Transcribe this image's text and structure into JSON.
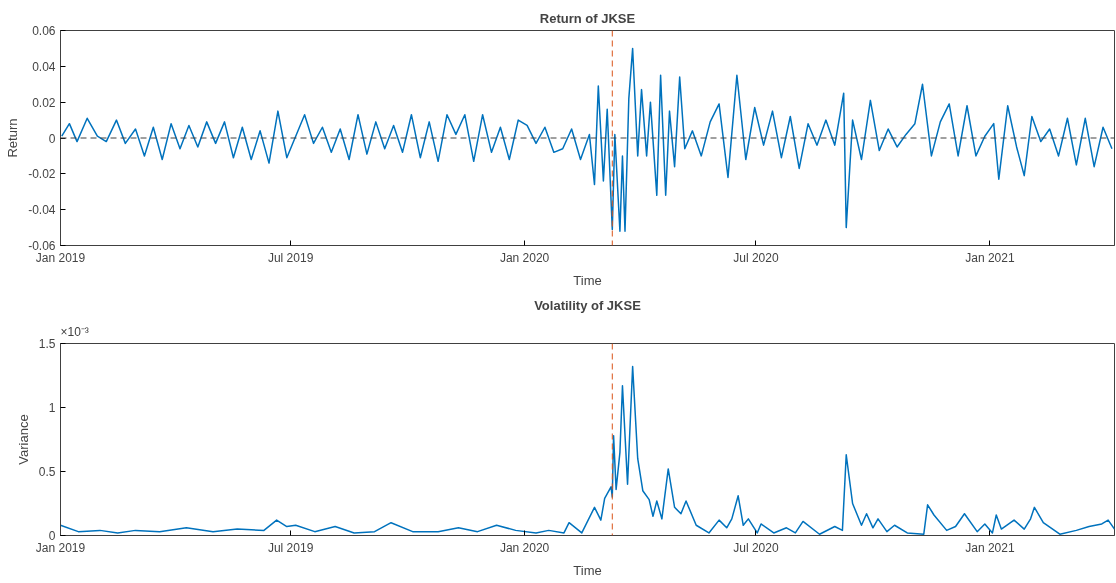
{
  "chart_data": [
    {
      "type": "line",
      "title": "Return of JKSE",
      "xlabel": "Time",
      "ylabel": "Return",
      "x": [
        "2019-01-02",
        "2019-01-08",
        "2019-01-14",
        "2019-01-22",
        "2019-01-30",
        "2019-02-06",
        "2019-02-14",
        "2019-02-21",
        "2019-03-01",
        "2019-03-08",
        "2019-03-15",
        "2019-03-22",
        "2019-03-29",
        "2019-04-05",
        "2019-04-12",
        "2019-04-19",
        "2019-04-26",
        "2019-05-03",
        "2019-05-10",
        "2019-05-17",
        "2019-05-24",
        "2019-05-31",
        "2019-06-07",
        "2019-06-14",
        "2019-06-21",
        "2019-06-28",
        "2019-07-05",
        "2019-07-12",
        "2019-07-19",
        "2019-07-26",
        "2019-08-02",
        "2019-08-09",
        "2019-08-16",
        "2019-08-23",
        "2019-08-30",
        "2019-09-06",
        "2019-09-13",
        "2019-09-20",
        "2019-09-27",
        "2019-10-04",
        "2019-10-11",
        "2019-10-18",
        "2019-10-25",
        "2019-11-01",
        "2019-11-08",
        "2019-11-15",
        "2019-11-22",
        "2019-11-29",
        "2019-12-06",
        "2019-12-13",
        "2019-12-20",
        "2019-12-27",
        "2020-01-03",
        "2020-01-10",
        "2020-01-17",
        "2020-01-24",
        "2020-01-31",
        "2020-02-07",
        "2020-02-14",
        "2020-02-21",
        "2020-02-25",
        "2020-02-28",
        "2020-03-03",
        "2020-03-06",
        "2020-03-10",
        "2020-03-12",
        "2020-03-16",
        "2020-03-18",
        "2020-03-20",
        "2020-03-23",
        "2020-03-26",
        "2020-03-30",
        "2020-04-02",
        "2020-04-06",
        "2020-04-09",
        "2020-04-14",
        "2020-04-17",
        "2020-04-21",
        "2020-04-24",
        "2020-04-28",
        "2020-05-02",
        "2020-05-06",
        "2020-05-12",
        "2020-05-19",
        "2020-05-26",
        "2020-06-02",
        "2020-06-09",
        "2020-06-16",
        "2020-06-23",
        "2020-06-30",
        "2020-07-07",
        "2020-07-14",
        "2020-07-21",
        "2020-07-28",
        "2020-08-04",
        "2020-08-11",
        "2020-08-18",
        "2020-08-25",
        "2020-09-01",
        "2020-09-08",
        "2020-09-10",
        "2020-09-15",
        "2020-09-22",
        "2020-09-29",
        "2020-10-06",
        "2020-10-13",
        "2020-10-20",
        "2020-10-27",
        "2020-11-03",
        "2020-11-09",
        "2020-11-16",
        "2020-11-23",
        "2020-11-30",
        "2020-12-07",
        "2020-12-14",
        "2020-12-21",
        "2020-12-28",
        "2021-01-04",
        "2021-01-08",
        "2021-01-15",
        "2021-01-22",
        "2021-01-28",
        "2021-02-03",
        "2021-02-10",
        "2021-02-17",
        "2021-02-24",
        "2021-03-03",
        "2021-03-10",
        "2021-03-17",
        "2021-03-24",
        "2021-03-31",
        "2021-04-07"
      ],
      "series": [
        {
          "color": "#0072bd",
          "values": [
            0.001,
            0.008,
            -0.002,
            0.011,
            0.001,
            -0.002,
            0.01,
            -0.003,
            0.005,
            -0.01,
            0.006,
            -0.012,
            0.008,
            -0.006,
            0.007,
            -0.005,
            0.009,
            -0.003,
            0.009,
            -0.011,
            0.006,
            -0.012,
            0.004,
            -0.014,
            0.015,
            -0.011,
            0.001,
            0.013,
            -0.003,
            0.006,
            -0.008,
            0.005,
            -0.012,
            0.013,
            -0.009,
            0.009,
            -0.006,
            0.007,
            -0.008,
            0.013,
            -0.011,
            0.009,
            -0.013,
            0.013,
            0.002,
            0.013,
            -0.013,
            0.013,
            -0.008,
            0.006,
            -0.012,
            0.01,
            0.007,
            -0.003,
            0.006,
            -0.008,
            -0.006,
            0.005,
            -0.012,
            0.002,
            -0.026,
            0.029,
            -0.024,
            0.016,
            -0.051,
            0.002,
            -0.052,
            -0.01,
            -0.052,
            0.022,
            0.05,
            -0.01,
            0.027,
            -0.01,
            0.02,
            -0.032,
            0.035,
            -0.032,
            0.015,
            -0.016,
            0.034,
            -0.006,
            0.004,
            -0.01,
            0.009,
            0.019,
            -0.022,
            0.035,
            -0.012,
            0.017,
            -0.004,
            0.015,
            -0.011,
            0.012,
            -0.017,
            0.008,
            -0.004,
            0.01,
            -0.004,
            0.025,
            -0.05,
            0.01,
            -0.012,
            0.021,
            -0.007,
            0.005,
            -0.005,
            0.002,
            0.008,
            0.03,
            -0.01,
            0.009,
            0.019,
            -0.01,
            0.018,
            -0.01,
            0.001,
            0.008,
            -0.023,
            0.018,
            -0.005,
            -0.021,
            0.012,
            -0.002,
            0.005,
            -0.01,
            0.011,
            -0.015,
            0.011,
            -0.016,
            0.006,
            -0.006
          ]
        }
      ],
      "xlim": [
        "2019-01-01",
        "2021-04-09"
      ],
      "xticks": [
        {
          "value": "2019-01-01",
          "label": "Jan 2019"
        },
        {
          "value": "2019-07-01",
          "label": "Jul 2019"
        },
        {
          "value": "2020-01-01",
          "label": "Jan 2020"
        },
        {
          "value": "2020-07-01",
          "label": "Jul 2020"
        },
        {
          "value": "2021-01-01",
          "label": "Jan 2021"
        }
      ],
      "ylim": [
        -0.06,
        0.06
      ],
      "yticks": [
        -0.06,
        -0.04,
        -0.02,
        {
          "value": 0,
          "label": "0"
        },
        0.02,
        0.04,
        0.06
      ],
      "ref_lines": [
        {
          "axis": "x",
          "value": "2020-03-10",
          "color": "#d95319",
          "line_style": "dashed"
        },
        {
          "axis": "y",
          "value": 0,
          "color": "#404040",
          "line_style": "dashed"
        }
      ],
      "line_style": "solid",
      "marker": "none",
      "grid": false
    },
    {
      "type": "line",
      "title": "Volatility of JKSE",
      "xlabel": "Time",
      "ylabel": "Variance",
      "x": [
        "2019-01-01",
        "2019-01-15",
        "2019-02-01",
        "2019-02-15",
        "2019-03-01",
        "2019-03-20",
        "2019-04-10",
        "2019-05-01",
        "2019-05-20",
        "2019-06-10",
        "2019-06-20",
        "2019-06-28",
        "2019-07-05",
        "2019-07-20",
        "2019-08-05",
        "2019-08-20",
        "2019-09-05",
        "2019-09-18",
        "2019-10-05",
        "2019-10-25",
        "2019-11-10",
        "2019-11-25",
        "2019-12-10",
        "2019-12-25",
        "2020-01-10",
        "2020-01-20",
        "2020-02-01",
        "2020-02-05",
        "2020-02-15",
        "2020-02-25",
        "2020-03-01",
        "2020-03-04",
        "2020-03-09",
        "2020-03-10",
        "2020-03-11",
        "2020-03-13",
        "2020-03-16",
        "2020-03-18",
        "2020-03-22",
        "2020-03-26",
        "2020-03-30",
        "2020-04-03",
        "2020-04-08",
        "2020-04-11",
        "2020-04-14",
        "2020-04-18",
        "2020-04-23",
        "2020-04-28",
        "2020-05-03",
        "2020-05-07",
        "2020-05-15",
        "2020-05-25",
        "2020-06-02",
        "2020-06-08",
        "2020-06-12",
        "2020-06-17",
        "2020-06-21",
        "2020-06-25",
        "2020-07-02",
        "2020-07-05",
        "2020-07-15",
        "2020-07-25",
        "2020-08-01",
        "2020-08-07",
        "2020-08-20",
        "2020-09-01",
        "2020-09-07",
        "2020-09-10",
        "2020-09-15",
        "2020-09-22",
        "2020-09-26",
        "2020-10-01",
        "2020-10-05",
        "2020-10-12",
        "2020-10-18",
        "2020-10-28",
        "2020-11-10",
        "2020-11-13",
        "2020-11-18",
        "2020-11-28",
        "2020-12-05",
        "2020-12-12",
        "2020-12-22",
        "2020-12-28",
        "2021-01-03",
        "2021-01-06",
        "2021-01-10",
        "2021-01-20",
        "2021-01-28",
        "2021-02-02",
        "2021-02-05",
        "2021-02-12",
        "2021-02-25",
        "2021-03-10",
        "2021-03-20",
        "2021-03-30",
        "2021-04-04",
        "2021-04-09"
      ],
      "series": [
        {
          "color": "#0072bd",
          "values": [
            0.08,
            0.03,
            0.04,
            0.02,
            0.04,
            0.03,
            0.06,
            0.03,
            0.05,
            0.04,
            0.12,
            0.07,
            0.08,
            0.03,
            0.07,
            0.02,
            0.03,
            0.1,
            0.03,
            0.03,
            0.06,
            0.03,
            0.08,
            0.04,
            0.02,
            0.04,
            0.02,
            0.1,
            0.02,
            0.22,
            0.12,
            0.29,
            0.38,
            0.3,
            0.78,
            0.36,
            0.65,
            1.17,
            0.4,
            1.32,
            0.6,
            0.35,
            0.28,
            0.15,
            0.27,
            0.13,
            0.52,
            0.22,
            0.17,
            0.27,
            0.08,
            0.02,
            0.12,
            0.06,
            0.13,
            0.31,
            0.08,
            0.13,
            0.02,
            0.09,
            0.02,
            0.06,
            0.02,
            0.11,
            0.01,
            0.07,
            0.04,
            0.63,
            0.25,
            0.08,
            0.17,
            0.06,
            0.13,
            0.03,
            0.08,
            0.02,
            0.01,
            0.24,
            0.16,
            0.04,
            0.07,
            0.17,
            0.03,
            0.09,
            0.02,
            0.16,
            0.05,
            0.12,
            0.05,
            0.13,
            0.22,
            0.1,
            0.01,
            0.04,
            0.07,
            0.09,
            0.12,
            0.05
          ]
        }
      ],
      "xlim": [
        "2019-01-01",
        "2021-04-09"
      ],
      "xticks": [
        {
          "value": "2019-01-01",
          "label": "Jan 2019"
        },
        {
          "value": "2019-07-01",
          "label": "Jul 2019"
        },
        {
          "value": "2020-01-01",
          "label": "Jan 2020"
        },
        {
          "value": "2020-07-01",
          "label": "Jul 2020"
        },
        {
          "value": "2021-01-01",
          "label": "Jan 2021"
        }
      ],
      "ylim": [
        0,
        1.5
      ],
      "yticks": [
        0,
        0.5,
        1,
        1.5
      ],
      "annotations": [
        "×10⁻³"
      ],
      "ref_lines": [
        {
          "axis": "x",
          "value": "2020-03-10",
          "color": "#d95319",
          "line_style": "dashed"
        }
      ],
      "line_style": "solid",
      "marker": "none",
      "grid": false
    }
  ]
}
